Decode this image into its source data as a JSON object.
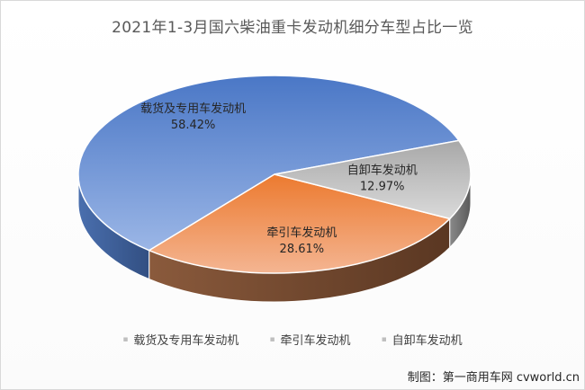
{
  "chart_data": {
    "type": "pie",
    "title": "2021年1-3月国六柴油重卡发动机细分车型占比一览",
    "slices": [
      {
        "name": "载货及专用车发动机",
        "percent_label": "58.42%",
        "value": 58.42
      },
      {
        "name": "牵引车发动机",
        "percent_label": "28.61%",
        "value": 28.61
      },
      {
        "name": "自卸车发动机",
        "percent_label": "12.97%",
        "value": 12.97
      }
    ],
    "legend": {
      "placement": "bottom",
      "marker": "▪",
      "items": [
        "载货及专用车发动机",
        "牵引车发动机",
        "自卸车发动机"
      ]
    },
    "colors": {
      "slice_0_top": "#5b87d1",
      "slice_0_side": "#3f5f98",
      "slice_1_top": "#ee8c4a",
      "slice_1_side": "#754a33",
      "slice_2_top": "#c2c2c2",
      "slice_2_side": "#6f6f6f"
    }
  },
  "credit": "制图：第一商用车网 cvworld.cn"
}
